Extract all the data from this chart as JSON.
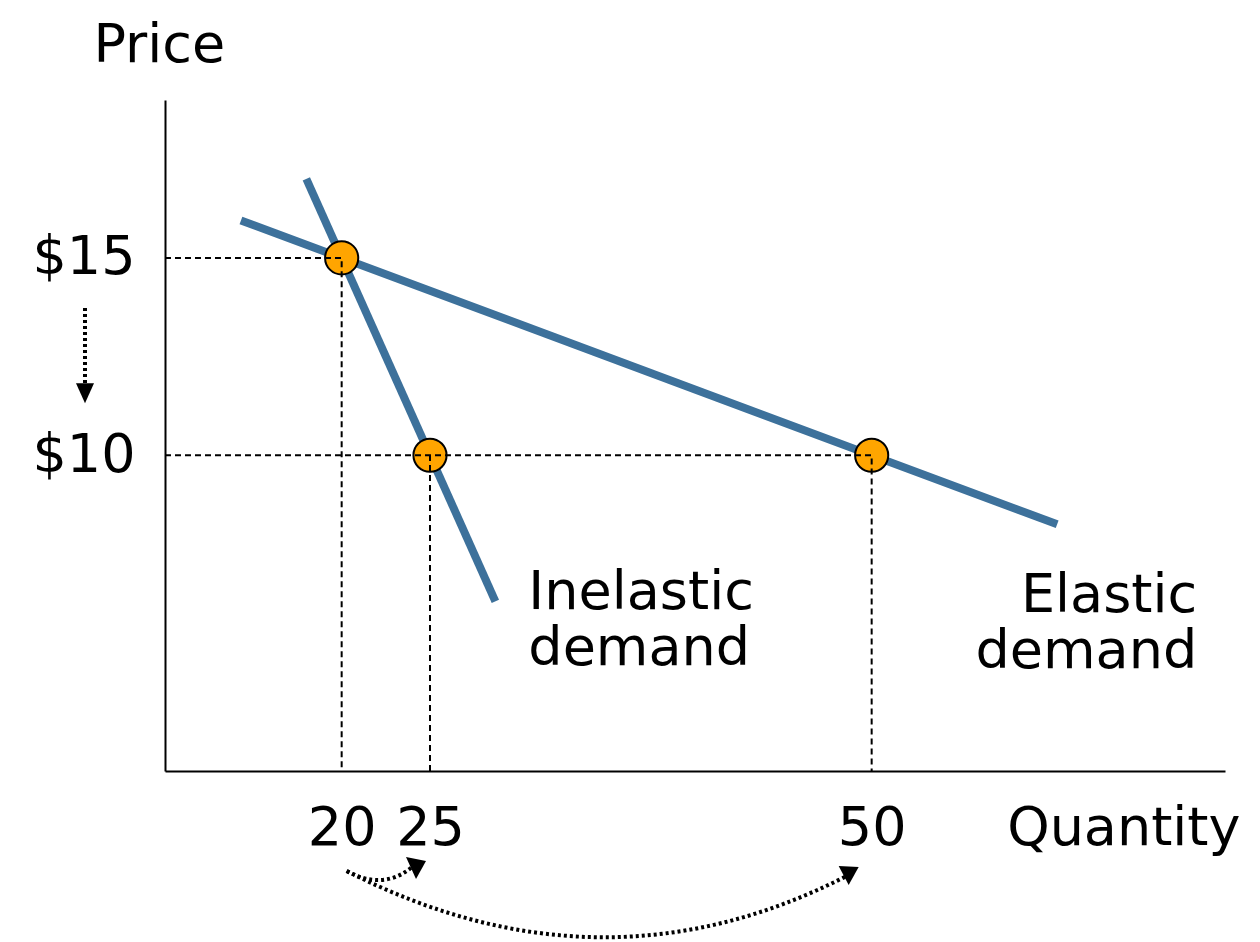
{
  "chart_data": {
    "type": "line",
    "xlabel": "Quantity",
    "ylabel": "Price",
    "xlim": [
      10,
      70
    ],
    "ylim": [
      2,
      19
    ],
    "xticks": [
      20,
      25,
      50
    ],
    "yticks": [
      {
        "value": 10,
        "label": "$10"
      },
      {
        "value": 15,
        "label": "$15"
      }
    ],
    "series": [
      {
        "name": "Inelastic demand",
        "type": "line",
        "color": "#3d719b",
        "x": [
          18,
          28.7
        ],
        "values": [
          17,
          6.3
        ]
      },
      {
        "name": "Elastic demand",
        "type": "line",
        "color": "#3d719b",
        "x": [
          14.3,
          60.5
        ],
        "values": [
          15.95,
          8.25
        ]
      },
      {
        "type": "scatter",
        "marker": "circle",
        "color": "#ffa500",
        "x": [
          20,
          25,
          50
        ],
        "values": [
          15,
          10,
          10
        ]
      },
      {
        "type": "line",
        "line_style": "dashed",
        "color": "#000000",
        "x": [
          10,
          20,
          20
        ],
        "values": [
          15,
          15,
          2
        ]
      },
      {
        "type": "line",
        "line_style": "dashed",
        "color": "#000000",
        "x": [
          10,
          50,
          50
        ],
        "values": [
          10,
          10,
          2
        ]
      },
      {
        "type": "line",
        "line_style": "dashed",
        "color": "#000000",
        "x": [
          25,
          25
        ],
        "values": [
          2,
          10
        ]
      }
    ]
  }
}
